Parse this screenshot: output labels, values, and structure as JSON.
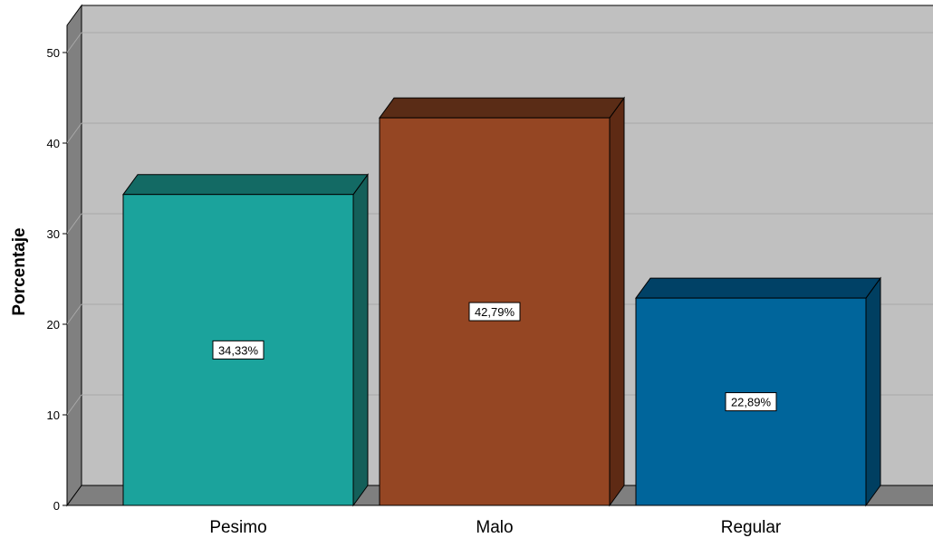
{
  "chart_data": {
    "type": "bar",
    "style": "3d",
    "categories": [
      "Pesimo",
      "Malo",
      "Regular"
    ],
    "values": [
      34.33,
      42.79,
      22.89
    ],
    "data_labels": [
      "34,33%",
      "42,79%",
      "22,89%"
    ],
    "ylabel": "Porcentaje",
    "xlabel": "",
    "ylim": [
      0,
      50
    ],
    "yticks": [
      0,
      10,
      20,
      30,
      40,
      50
    ],
    "grid": true,
    "legend": "none",
    "colors": {
      "bars": [
        "#1ba39c",
        "#954623",
        "#00659b"
      ],
      "bar_tops": [
        "#136a64",
        "#5a2c16",
        "#004166"
      ],
      "bar_sides": [
        "#145f59",
        "#5e2a14",
        "#003f61"
      ],
      "wall": "#c0c0c0",
      "wall_side": "#808080",
      "floor": "#7f7f7f",
      "grid": "#a9a9a9"
    }
  }
}
